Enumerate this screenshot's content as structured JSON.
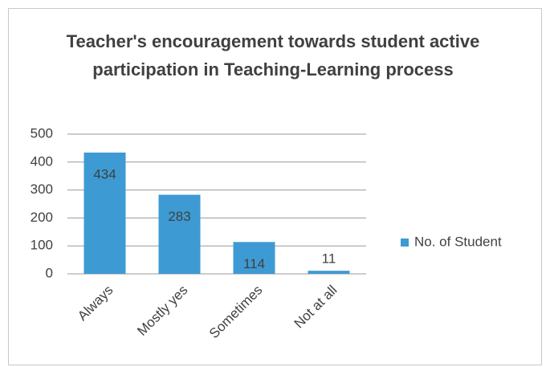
{
  "chart_data": {
    "type": "bar",
    "title": "Teacher's encouragement towards student active participation in Teaching-Learning process",
    "categories": [
      "Always",
      "Mostly yes",
      "Sometimes",
      "Not at all"
    ],
    "series": [
      {
        "name": "No. of Student",
        "color": "#3e9ad3",
        "values": [
          434,
          283,
          114,
          11
        ]
      }
    ],
    "ylim": [
      0,
      500
    ],
    "yticks": [
      0,
      100,
      200,
      300,
      400,
      500
    ],
    "grid": true,
    "legend": "right"
  }
}
